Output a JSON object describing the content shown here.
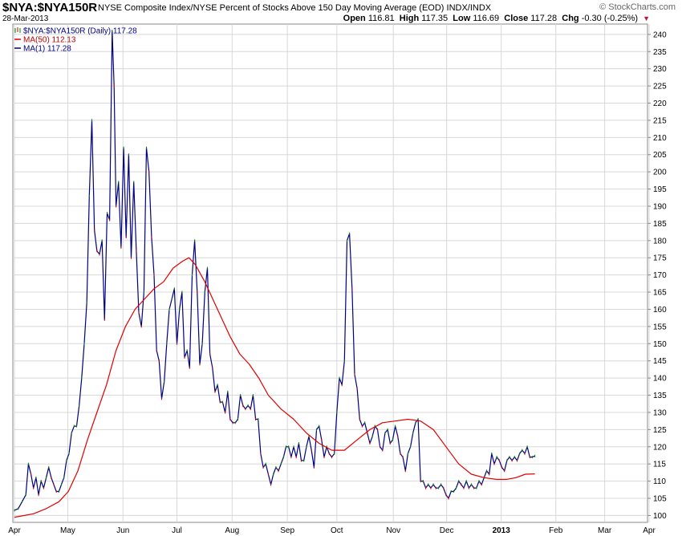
{
  "header": {
    "symbol": "$NYA:$NYA150R",
    "description": "NYSE Composite Index/NYSE Percent of Stocks Above 150 Day Moving Average (EOD)",
    "exchange": "INDX/INDX",
    "date": "28-Mar-2013",
    "brand": "© StockCharts.com",
    "open_label": "Open",
    "open_value": "116.81",
    "high_label": "High",
    "high_value": "117.35",
    "low_label": "Low",
    "low_value": "116.69",
    "close_label": "Close",
    "close_value": "117.28",
    "chg_label": "Chg",
    "chg_value": "-0.30 (-0.25%)"
  },
  "legend": [
    {
      "label": "$NYA:$NYA150R (Daily) 117.28",
      "color": "#000080"
    },
    {
      "label": "MA(50) 112.13",
      "color": "#e00000"
    },
    {
      "label": "MA(1) 117.28",
      "color": "#000080"
    }
  ],
  "chart_data": {
    "type": "line",
    "ylim": [
      98,
      243
    ],
    "y_ticks": [
      100,
      105,
      110,
      115,
      120,
      125,
      130,
      135,
      140,
      145,
      150,
      155,
      160,
      165,
      170,
      175,
      180,
      185,
      190,
      195,
      200,
      205,
      210,
      215,
      220,
      225,
      230,
      235,
      240
    ],
    "x_ticks": [
      {
        "label": "Apr",
        "t": 0
      },
      {
        "label": "May",
        "t": 0.084
      },
      {
        "label": "Jun",
        "t": 0.171
      },
      {
        "label": "Jul",
        "t": 0.256
      },
      {
        "label": "Aug",
        "t": 0.343
      },
      {
        "label": "Sep",
        "t": 0.43
      },
      {
        "label": "Oct",
        "t": 0.508
      },
      {
        "label": "Nov",
        "t": 0.597
      },
      {
        "label": "Dec",
        "t": 0.681
      },
      {
        "label": "2013",
        "t": 0.767,
        "bold": true
      },
      {
        "label": "Feb",
        "t": 0.853
      },
      {
        "label": "Mar",
        "t": 0.93
      },
      {
        "label": "Apr",
        "t": 1.0
      }
    ],
    "series": [
      {
        "name": "$NYA:$NYA150R",
        "color": "#000080",
        "points": [
          [
            0.0,
            101.5
          ],
          [
            0.006,
            102
          ],
          [
            0.012,
            104
          ],
          [
            0.018,
            106
          ],
          [
            0.022,
            115
          ],
          [
            0.026,
            112
          ],
          [
            0.03,
            108
          ],
          [
            0.034,
            111
          ],
          [
            0.038,
            106
          ],
          [
            0.042,
            110
          ],
          [
            0.046,
            108
          ],
          [
            0.05,
            111
          ],
          [
            0.054,
            114
          ],
          [
            0.058,
            111
          ],
          [
            0.062,
            109
          ],
          [
            0.066,
            107
          ],
          [
            0.07,
            107
          ],
          [
            0.074,
            109
          ],
          [
            0.078,
            111
          ],
          [
            0.082,
            116
          ],
          [
            0.086,
            118
          ],
          [
            0.09,
            124
          ],
          [
            0.094,
            126
          ],
          [
            0.098,
            126
          ],
          [
            0.102,
            132
          ],
          [
            0.106,
            140
          ],
          [
            0.11,
            150
          ],
          [
            0.114,
            162
          ],
          [
            0.118,
            193
          ],
          [
            0.122,
            215
          ],
          [
            0.126,
            183
          ],
          [
            0.13,
            177
          ],
          [
            0.134,
            176
          ],
          [
            0.138,
            180
          ],
          [
            0.142,
            157
          ],
          [
            0.146,
            188
          ],
          [
            0.15,
            186
          ],
          [
            0.154,
            241
          ],
          [
            0.157,
            225
          ],
          [
            0.16,
            190
          ],
          [
            0.164,
            197
          ],
          [
            0.168,
            178
          ],
          [
            0.172,
            207
          ],
          [
            0.176,
            181
          ],
          [
            0.18,
            205
          ],
          [
            0.184,
            175
          ],
          [
            0.188,
            197
          ],
          [
            0.192,
            177
          ],
          [
            0.196,
            159
          ],
          [
            0.2,
            155
          ],
          [
            0.204,
            165
          ],
          [
            0.208,
            207
          ],
          [
            0.212,
            200
          ],
          [
            0.216,
            181
          ],
          [
            0.22,
            170
          ],
          [
            0.224,
            148
          ],
          [
            0.228,
            145
          ],
          [
            0.232,
            134
          ],
          [
            0.236,
            139
          ],
          [
            0.24,
            150
          ],
          [
            0.244,
            160
          ],
          [
            0.248,
            163
          ],
          [
            0.252,
            166
          ],
          [
            0.256,
            150
          ],
          [
            0.26,
            160
          ],
          [
            0.264,
            165
          ],
          [
            0.268,
            146
          ],
          [
            0.272,
            148
          ],
          [
            0.276,
            143
          ],
          [
            0.28,
            170
          ],
          [
            0.284,
            180
          ],
          [
            0.288,
            165
          ],
          [
            0.292,
            144
          ],
          [
            0.296,
            150
          ],
          [
            0.3,
            165
          ],
          [
            0.304,
            172
          ],
          [
            0.308,
            147
          ],
          [
            0.312,
            143
          ],
          [
            0.316,
            136
          ],
          [
            0.32,
            138
          ],
          [
            0.324,
            133
          ],
          [
            0.328,
            133
          ],
          [
            0.332,
            130
          ],
          [
            0.336,
            136
          ],
          [
            0.34,
            128
          ],
          [
            0.344,
            127
          ],
          [
            0.348,
            127
          ],
          [
            0.352,
            128
          ],
          [
            0.356,
            135
          ],
          [
            0.36,
            132
          ],
          [
            0.364,
            131
          ],
          [
            0.368,
            132
          ],
          [
            0.372,
            131
          ],
          [
            0.376,
            135
          ],
          [
            0.38,
            128
          ],
          [
            0.384,
            128
          ],
          [
            0.388,
            118
          ],
          [
            0.392,
            114
          ],
          [
            0.396,
            115
          ],
          [
            0.4,
            112
          ],
          [
            0.404,
            109
          ],
          [
            0.408,
            112
          ],
          [
            0.412,
            114
          ],
          [
            0.416,
            113
          ],
          [
            0.42,
            115
          ],
          [
            0.424,
            117
          ],
          [
            0.428,
            120
          ],
          [
            0.432,
            120
          ],
          [
            0.436,
            117
          ],
          [
            0.44,
            120
          ],
          [
            0.444,
            117
          ],
          [
            0.448,
            121
          ],
          [
            0.452,
            116
          ],
          [
            0.456,
            116
          ],
          [
            0.46,
            120
          ],
          [
            0.464,
            123
          ],
          [
            0.468,
            119
          ],
          [
            0.472,
            114
          ],
          [
            0.476,
            125
          ],
          [
            0.48,
            126
          ],
          [
            0.484,
            122
          ],
          [
            0.488,
            117
          ],
          [
            0.492,
            120
          ],
          [
            0.496,
            118
          ],
          [
            0.5,
            117
          ],
          [
            0.504,
            118
          ],
          [
            0.508,
            130
          ],
          [
            0.512,
            140
          ],
          [
            0.516,
            138
          ],
          [
            0.52,
            145
          ],
          [
            0.524,
            180
          ],
          [
            0.528,
            182
          ],
          [
            0.532,
            166
          ],
          [
            0.536,
            141
          ],
          [
            0.54,
            137
          ],
          [
            0.544,
            128
          ],
          [
            0.548,
            126
          ],
          [
            0.552,
            127
          ],
          [
            0.556,
            124
          ],
          [
            0.56,
            121
          ],
          [
            0.564,
            123
          ],
          [
            0.568,
            126
          ],
          [
            0.572,
            125
          ],
          [
            0.576,
            120
          ],
          [
            0.58,
            119
          ],
          [
            0.584,
            124
          ],
          [
            0.588,
            125
          ],
          [
            0.592,
            121
          ],
          [
            0.596,
            122
          ],
          [
            0.6,
            126
          ],
          [
            0.604,
            123
          ],
          [
            0.608,
            118
          ],
          [
            0.612,
            117
          ],
          [
            0.616,
            113
          ],
          [
            0.62,
            118
          ],
          [
            0.624,
            120
          ],
          [
            0.628,
            124
          ],
          [
            0.632,
            127
          ],
          [
            0.636,
            128
          ],
          [
            0.64,
            110
          ],
          [
            0.644,
            110
          ],
          [
            0.648,
            108
          ],
          [
            0.652,
            109
          ],
          [
            0.656,
            108
          ],
          [
            0.66,
            109
          ],
          [
            0.664,
            108
          ],
          [
            0.668,
            108
          ],
          [
            0.672,
            109
          ],
          [
            0.676,
            108
          ],
          [
            0.68,
            106
          ],
          [
            0.684,
            105
          ],
          [
            0.688,
            107
          ],
          [
            0.692,
            107
          ],
          [
            0.696,
            108
          ],
          [
            0.7,
            110
          ],
          [
            0.704,
            109
          ],
          [
            0.708,
            108
          ],
          [
            0.712,
            110
          ],
          [
            0.716,
            108
          ],
          [
            0.72,
            109
          ],
          [
            0.724,
            108
          ],
          [
            0.728,
            108
          ],
          [
            0.732,
            110
          ],
          [
            0.736,
            109
          ],
          [
            0.74,
            111
          ],
          [
            0.744,
            113
          ],
          [
            0.748,
            112
          ],
          [
            0.752,
            118
          ],
          [
            0.756,
            115
          ],
          [
            0.76,
            117
          ],
          [
            0.764,
            116
          ],
          [
            0.768,
            114
          ],
          [
            0.772,
            113
          ],
          [
            0.776,
            116
          ],
          [
            0.78,
            117
          ],
          [
            0.784,
            116
          ],
          [
            0.788,
            117
          ],
          [
            0.792,
            116
          ],
          [
            0.796,
            118
          ],
          [
            0.8,
            119
          ],
          [
            0.804,
            118
          ],
          [
            0.808,
            120
          ],
          [
            0.812,
            117
          ],
          [
            0.816,
            117
          ],
          [
            0.82,
            117.3
          ]
        ]
      },
      {
        "name": "MA(50)",
        "color": "#e00000",
        "points": [
          [
            0.0,
            99.5
          ],
          [
            0.03,
            100.5
          ],
          [
            0.05,
            102
          ],
          [
            0.07,
            104
          ],
          [
            0.085,
            107
          ],
          [
            0.1,
            113
          ],
          [
            0.115,
            122
          ],
          [
            0.13,
            130
          ],
          [
            0.145,
            138
          ],
          [
            0.16,
            148
          ],
          [
            0.175,
            155
          ],
          [
            0.19,
            160
          ],
          [
            0.205,
            163
          ],
          [
            0.22,
            166
          ],
          [
            0.235,
            168
          ],
          [
            0.25,
            172
          ],
          [
            0.265,
            174
          ],
          [
            0.275,
            175
          ],
          [
            0.285,
            173
          ],
          [
            0.3,
            168
          ],
          [
            0.32,
            160
          ],
          [
            0.34,
            152
          ],
          [
            0.355,
            147
          ],
          [
            0.37,
            144
          ],
          [
            0.385,
            140
          ],
          [
            0.4,
            135
          ],
          [
            0.42,
            131
          ],
          [
            0.44,
            128
          ],
          [
            0.46,
            124
          ],
          [
            0.48,
            121
          ],
          [
            0.5,
            119
          ],
          [
            0.52,
            119
          ],
          [
            0.54,
            122
          ],
          [
            0.56,
            125
          ],
          [
            0.58,
            127
          ],
          [
            0.6,
            127.5
          ],
          [
            0.62,
            128
          ],
          [
            0.64,
            127.5
          ],
          [
            0.66,
            125
          ],
          [
            0.68,
            120
          ],
          [
            0.7,
            115
          ],
          [
            0.72,
            112
          ],
          [
            0.74,
            111
          ],
          [
            0.76,
            110.5
          ],
          [
            0.775,
            110.5
          ],
          [
            0.79,
            111
          ],
          [
            0.805,
            112
          ],
          [
            0.82,
            112.1
          ]
        ]
      }
    ]
  }
}
